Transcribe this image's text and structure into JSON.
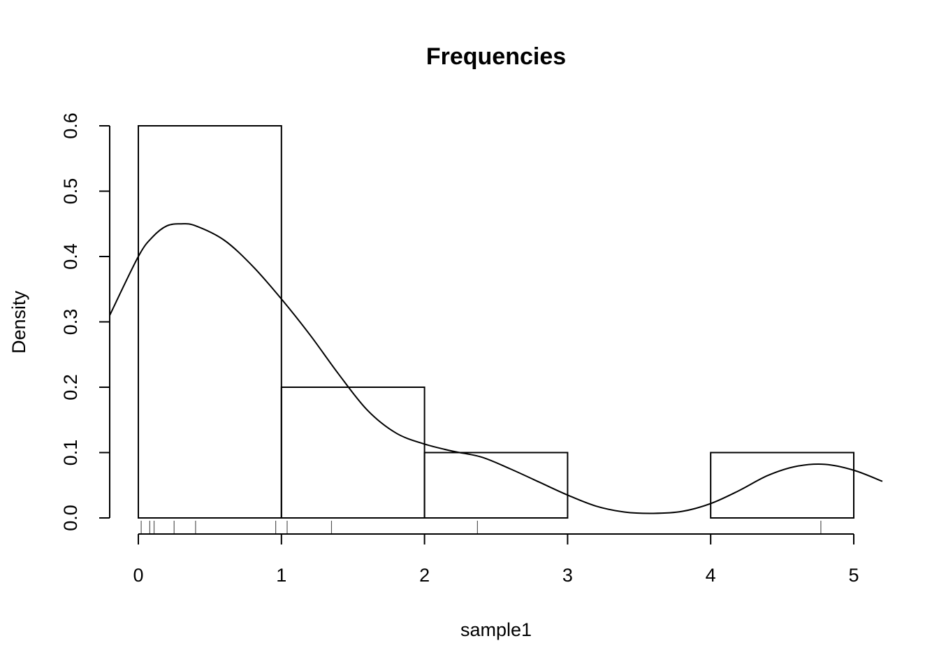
{
  "chart_data": {
    "type": "bar",
    "title": "Frequencies",
    "xlabel": "sample1",
    "ylabel": "Density",
    "xlim": [
      -0.2,
      5.2
    ],
    "ylim": [
      0,
      0.6
    ],
    "x_ticks": [
      0,
      1,
      2,
      3,
      4,
      5
    ],
    "y_ticks": [
      0.0,
      0.1,
      0.2,
      0.3,
      0.4,
      0.5,
      0.6
    ],
    "x_tick_labels": [
      "0",
      "1",
      "2",
      "3",
      "4",
      "5"
    ],
    "y_tick_labels": [
      "0.0",
      "0.1",
      "0.2",
      "0.3",
      "0.4",
      "0.5",
      "0.6"
    ],
    "histogram": {
      "breaks": [
        0,
        1,
        2,
        3,
        4,
        5
      ],
      "density": [
        0.6,
        0.2,
        0.1,
        0.0,
        0.1
      ]
    },
    "density_curve": {
      "x": [
        -0.2,
        0.0,
        0.1,
        0.2,
        0.3,
        0.4,
        0.6,
        0.8,
        1.0,
        1.2,
        1.4,
        1.6,
        1.8,
        2.0,
        2.2,
        2.4,
        2.6,
        2.8,
        3.0,
        3.2,
        3.4,
        3.6,
        3.8,
        4.0,
        4.2,
        4.4,
        4.6,
        4.8,
        5.0,
        5.2
      ],
      "y": [
        0.31,
        0.4,
        0.43,
        0.447,
        0.45,
        0.447,
        0.425,
        0.385,
        0.335,
        0.28,
        0.22,
        0.165,
        0.13,
        0.113,
        0.102,
        0.093,
        0.075,
        0.055,
        0.035,
        0.018,
        0.009,
        0.007,
        0.01,
        0.022,
        0.042,
        0.065,
        0.079,
        0.082,
        0.073,
        0.056
      ]
    },
    "rug": [
      0.02,
      0.08,
      0.11,
      0.25,
      0.4,
      0.96,
      1.04,
      1.35,
      2.37,
      4.77
    ],
    "grid": false,
    "legend": "none"
  }
}
